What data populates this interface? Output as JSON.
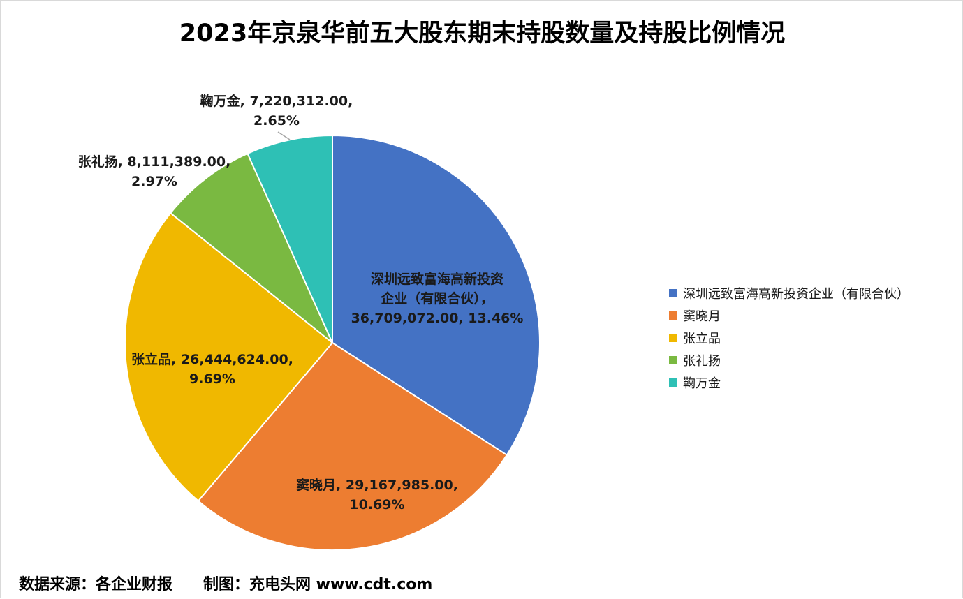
{
  "chart_data": {
    "type": "pie",
    "title": "2023年京泉华前五大股东期末持股数量及持股比例情况",
    "legend_position": "right",
    "slices": [
      {
        "name": "深圳远致富海高新投资企业（有限合伙）",
        "label_name": "深圳远致富海高新投资企业（有限合伙）",
        "value": 36709072,
        "value_text": "36,709,072.00",
        "percent_text": "13.46%",
        "color": "#4472C4"
      },
      {
        "name": "窦晓月",
        "label_name": "窦晓月",
        "value": 29167985,
        "value_text": "29,167,985.00",
        "percent_text": "10.69%",
        "color": "#ED7D31"
      },
      {
        "name": "张立品",
        "label_name": "张立品",
        "value": 26444624,
        "value_text": "26,444,624.00",
        "percent_text": "9.69%",
        "color": "#F0B800"
      },
      {
        "name": "张礼扬",
        "label_name": "张礼扬",
        "value": 8111389,
        "value_text": "8,111,389.00",
        "percent_text": "2.97%",
        "color": "#7AB941"
      },
      {
        "name": "鞠万金",
        "label_name": "鞠万金",
        "value": 7220312,
        "value_text": "7,220,312.00",
        "percent_text": "2.65%",
        "color": "#2EC0B5"
      }
    ]
  },
  "footer": {
    "source": "数据来源：各企业财报　　制图：充电头网 www.cdt.com"
  }
}
